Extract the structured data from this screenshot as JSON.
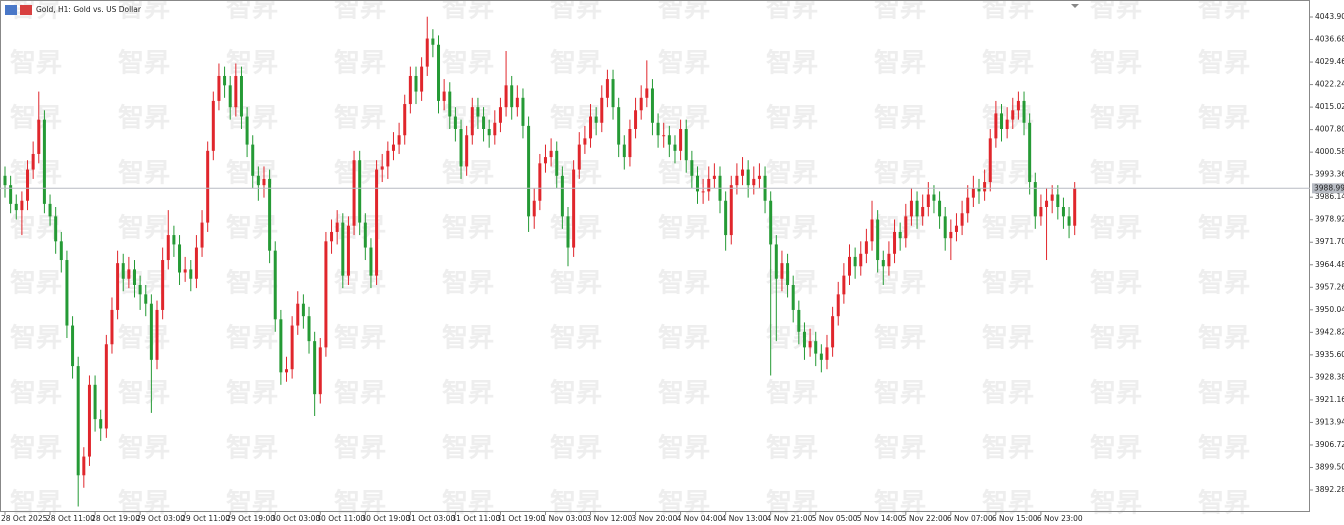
{
  "chart_data": {
    "type": "candlestick",
    "title": "Gold, H1:  Gold vs. US Dollar",
    "watermark": "智昇",
    "categories": [
      "28 Oct 2025",
      null,
      null,
      null,
      null,
      null,
      null,
      null,
      "28 Oct 11:00",
      null,
      null,
      null,
      null,
      null,
      null,
      null,
      "28 Oct 19:00",
      null,
      null,
      null,
      null,
      null,
      null,
      null,
      "29 Oct 03:00",
      null,
      null,
      null,
      null,
      null,
      null,
      null,
      "29 Oct 11:00",
      null,
      null,
      null,
      null,
      null,
      null,
      null,
      "29 Oct 19:00",
      null,
      null,
      null,
      null,
      null,
      null,
      null,
      "30 Oct 03:00",
      null,
      null,
      null,
      null,
      null,
      null,
      null,
      "30 Oct 11:00",
      null,
      null,
      null,
      null,
      null,
      null,
      null,
      "30 Oct 19:00",
      null,
      null,
      null,
      null,
      null,
      null,
      null,
      "31 Oct 03:00",
      null,
      null,
      null,
      null,
      null,
      null,
      null,
      "31 Oct 11:00",
      null,
      null,
      null,
      null,
      null,
      null,
      null,
      "31 Oct 19:00",
      null,
      null,
      null,
      null,
      null,
      null,
      null,
      "1 Nov 03:00",
      null,
      null,
      null,
      null,
      null,
      null,
      null,
      "3 Nov 12:00",
      null,
      null,
      null,
      null,
      null,
      null,
      null,
      "3 Nov 20:00",
      null,
      null,
      null,
      null,
      null,
      null,
      null,
      "4 Nov 04:00",
      null,
      null,
      null,
      null,
      null,
      null,
      null,
      "4 Nov 13:00",
      null,
      null,
      null,
      null,
      null,
      null,
      null,
      "4 Nov 21:00",
      null,
      null,
      null,
      null,
      null,
      null,
      null,
      "5 Nov 05:00",
      null,
      null,
      null,
      null,
      null,
      null,
      null,
      "5 Nov 14:00",
      null,
      null,
      null,
      null,
      null,
      null,
      null,
      "5 Nov 22:00",
      null,
      null,
      null,
      null,
      null,
      null,
      null,
      "6 Nov 07:00",
      null,
      null,
      null,
      null,
      null,
      null,
      null,
      "6 Nov 15:00",
      null,
      null,
      null,
      null,
      null,
      null,
      null,
      "6 Nov 23:00",
      null,
      null,
      null,
      null,
      null,
      null
    ],
    "open": [
      3993,
      3990,
      3984,
      3982,
      3985,
      3995,
      4000,
      4011,
      3984,
      3980,
      3972,
      3966,
      3945,
      3932,
      3897,
      3903,
      3926,
      3915,
      3912,
      3939,
      3950,
      3965,
      3960,
      3963,
      3958,
      3955,
      3952,
      3934,
      3950,
      3966,
      3974,
      3971,
      3962,
      3963,
      3960,
      3970,
      3978,
      4001,
      4017,
      4025,
      4022,
      4015,
      4025,
      4012,
      4003,
      3993,
      3990,
      3992,
      3969,
      3947,
      3930,
      3931,
      3945,
      3952,
      3948,
      3940,
      3923,
      3938,
      3972,
      3975,
      3978,
      3961,
      3977,
      3998,
      3978,
      3970,
      3961,
      3995,
      3996,
      4001,
      4003,
      4006,
      4016,
      4025,
      4020,
      4028,
      4037,
      4035,
      4017,
      4020,
      4012,
      4008,
      3996,
      4006,
      4015,
      4012,
      4008,
      4006,
      4010,
      4015,
      4022,
      4015,
      4018,
      4009,
      3980,
      3985,
      3997,
      3999,
      4001,
      3993,
      3980,
      3970,
      3995,
      4003,
      4005,
      4012,
      4010,
      4018,
      4024,
      4015,
      4003,
      3999,
      4008,
      4014,
      4018,
      4021,
      4010,
      4006,
      4006,
      4003,
      4001,
      4008,
      3998,
      3993,
      3988,
      3988,
      3992,
      3993,
      3985,
      3974,
      3990,
      3993,
      3995,
      3990,
      3992,
      3993,
      3985,
      3971,
      3960,
      3965,
      3958,
      3950,
      3943,
      3938,
      3940,
      3936,
      3934,
      3938,
      3948,
      3955,
      3961,
      3967,
      3964,
      3968,
      3972,
      3979,
      3966,
      3964,
      3968,
      3975,
      3973,
      3980,
      3985,
      3980,
      3983,
      3987,
      3985,
      3980,
      3973,
      3975,
      3977,
      3981,
      3986,
      3989,
      3988,
      3991,
      4005,
      4013,
      4008,
      4011,
      4014,
      4017,
      4010,
      3991,
      3980,
      3983,
      3985,
      3987,
      3983,
      3980,
      3977
    ],
    "high": [
      3996,
      3993,
      3987,
      3988,
      3998,
      4004,
      4020,
      4014,
      3987,
      3983,
      3975,
      3969,
      3948,
      3935,
      3906,
      3929,
      3929,
      3918,
      3942,
      3954,
      3969,
      3968,
      3967,
      3966,
      3961,
      3958,
      3955,
      3953,
      3970,
      3982,
      3977,
      3974,
      3967,
      3966,
      3974,
      3982,
      4004,
      4020,
      4029,
      4028,
      4025,
      4029,
      4028,
      4015,
      4006,
      3996,
      3996,
      3995,
      3972,
      3950,
      3935,
      3948,
      3956,
      3955,
      3951,
      3943,
      3941,
      3975,
      3979,
      3982,
      3981,
      3980,
      4001,
      4001,
      3981,
      3973,
      3998,
      4000,
      4004,
      4007,
      4010,
      4019,
      4028,
      4028,
      4031,
      4044,
      4040,
      4038,
      4024,
      4023,
      4015,
      4011,
      4009,
      4018,
      4018,
      4015,
      4011,
      4014,
      4018,
      4033,
      4025,
      4022,
      4021,
      4012,
      3989,
      4000,
      4003,
      4005,
      4004,
      3996,
      3983,
      3998,
      4007,
      4009,
      4016,
      4015,
      4022,
      4027,
      4027,
      4018,
      4006,
      4011,
      4018,
      4022,
      4030,
      4024,
      4013,
      4010,
      4009,
      4006,
      4011,
      4011,
      4001,
      3996,
      3992,
      3996,
      3997,
      3996,
      3988,
      3993,
      3997,
      3999,
      3998,
      3996,
      3997,
      3996,
      3988,
      3974,
      3969,
      3968,
      3961,
      3953,
      3946,
      3944,
      3943,
      3939,
      3942,
      3951,
      3959,
      3965,
      3971,
      3970,
      3972,
      3976,
      3985,
      3982,
      3969,
      3972,
      3979,
      3978,
      3984,
      3989,
      3988,
      3987,
      3991,
      3990,
      3988,
      3983,
      3979,
      3981,
      3985,
      3990,
      3993,
      3992,
      3995,
      4008,
      4017,
      4016,
      4015,
      4018,
      4020,
      4020,
      4013,
      3994,
      3987,
      3989,
      3990,
      3990,
      3986,
      3983,
      3991
    ],
    "low": [
      3986,
      3981,
      3979,
      3974,
      3982,
      3992,
      3997,
      3981,
      3977,
      3968,
      3962,
      3941,
      3928,
      3887,
      3893,
      3900,
      3911,
      3908,
      3909,
      3936,
      3947,
      3956,
      3957,
      3954,
      3950,
      3948,
      3917,
      3931,
      3947,
      3963,
      3967,
      3958,
      3959,
      3956,
      3957,
      3967,
      3975,
      3998,
      4014,
      4018,
      4011,
      4012,
      4008,
      3999,
      3989,
      3985,
      3986,
      3965,
      3943,
      3926,
      3927,
      3928,
      3942,
      3944,
      3936,
      3916,
      3920,
      3935,
      3968,
      3971,
      3957,
      3958,
      3974,
      3974,
      3966,
      3957,
      3958,
      3991,
      3992,
      3998,
      4000,
      4003,
      4013,
      4016,
      4017,
      4025,
      4031,
      4013,
      4014,
      4008,
      4004,
      3992,
      3993,
      4003,
      4008,
      4004,
      4002,
      4003,
      4007,
      4012,
      4011,
      4012,
      4005,
      3975,
      3976,
      3982,
      3994,
      3996,
      3989,
      3976,
      3964,
      3967,
      3992,
      4000,
      4002,
      4006,
      4007,
      4015,
      4011,
      3999,
      3995,
      3996,
      4005,
      4011,
      4015,
      4006,
      4002,
      4002,
      3999,
      3997,
      3998,
      3994,
      3989,
      3984,
      3984,
      3985,
      3989,
      3981,
      3969,
      3971,
      3987,
      3990,
      3986,
      3987,
      3989,
      3981,
      3929,
      3940,
      3956,
      3954,
      3946,
      3939,
      3934,
      3935,
      3932,
      3930,
      3931,
      3935,
      3945,
      3952,
      3958,
      3960,
      3961,
      3965,
      3969,
      3962,
      3958,
      3961,
      3965,
      3969,
      3970,
      3977,
      3976,
      3977,
      3980,
      3981,
      3976,
      3969,
      3966,
      3972,
      3974,
      3978,
      3983,
      3984,
      3985,
      3988,
      4002,
      4004,
      4005,
      4008,
      4011,
      4006,
      3987,
      3976,
      3977,
      3966,
      3981,
      3979,
      3976,
      3973,
      3974
    ],
    "close": [
      3990,
      3984,
      3982,
      3985,
      3995,
      4000,
      4011,
      3984,
      3980,
      3972,
      3966,
      3945,
      3932,
      3897,
      3903,
      3926,
      3915,
      3912,
      3939,
      3950,
      3965,
      3960,
      3963,
      3958,
      3955,
      3952,
      3934,
      3950,
      3966,
      3974,
      3971,
      3962,
      3963,
      3960,
      3970,
      3978,
      4001,
      4017,
      4025,
      4022,
      4015,
      4025,
      4012,
      4003,
      3993,
      3990,
      3992,
      3969,
      3947,
      3930,
      3931,
      3945,
      3952,
      3948,
      3940,
      3923,
      3938,
      3972,
      3975,
      3978,
      3961,
      3977,
      3998,
      3978,
      3970,
      3961,
      3995,
      3996,
      4001,
      4003,
      4006,
      4016,
      4025,
      4020,
      4028,
      4037,
      4035,
      4017,
      4020,
      4012,
      4008,
      3996,
      4006,
      4015,
      4012,
      4008,
      4006,
      4010,
      4015,
      4022,
      4015,
      4018,
      4009,
      3980,
      3985,
      3997,
      3999,
      4001,
      3993,
      3980,
      3970,
      3995,
      4003,
      4005,
      4012,
      4010,
      4018,
      4024,
      4015,
      4003,
      3999,
      4008,
      4014,
      4018,
      4021,
      4010,
      4006,
      4006,
      4003,
      4001,
      4008,
      3998,
      3993,
      3988,
      3988,
      3992,
      3993,
      3985,
      3974,
      3990,
      3993,
      3995,
      3990,
      3992,
      3993,
      3985,
      3971,
      3960,
      3965,
      3958,
      3950,
      3943,
      3938,
      3940,
      3936,
      3934,
      3938,
      3948,
      3955,
      3961,
      3967,
      3964,
      3968,
      3972,
      3979,
      3966,
      3964,
      3968,
      3975,
      3973,
      3980,
      3985,
      3980,
      3983,
      3987,
      3985,
      3980,
      3973,
      3975,
      3977,
      3981,
      3986,
      3989,
      3988,
      3991,
      4005,
      4013,
      4008,
      4011,
      4014,
      4017,
      4010,
      3991,
      3980,
      3983,
      3985,
      3987,
      3983,
      3980,
      3977,
      3988.99
    ],
    "bull_color": "#e0262c",
    "bear_color": "#259a35",
    "ylim": [
      3885.23,
      4047.75
    ],
    "yticks": [
      {
        "value": 4043.9,
        "label": "4043.90"
      },
      4036.68,
      4029.46,
      4022.24,
      4015.02,
      {
        "value": 4007.8,
        "label": "4007.80"
      },
      4000.58,
      3993.36,
      3986.14,
      3978.92,
      {
        "value": 3971.7,
        "label": "3971.70"
      },
      3964.48,
      3957.26,
      3950.04,
      3942.82,
      {
        "value": 3935.6,
        "label": "3935.60"
      },
      3928.38,
      3921.16,
      3913.94,
      3906.72,
      {
        "value": 3899.5,
        "label": "3899.50"
      },
      3892.28
    ],
    "price_line": {
      "value": 3988.99,
      "color": "#b8bcc4"
    }
  }
}
